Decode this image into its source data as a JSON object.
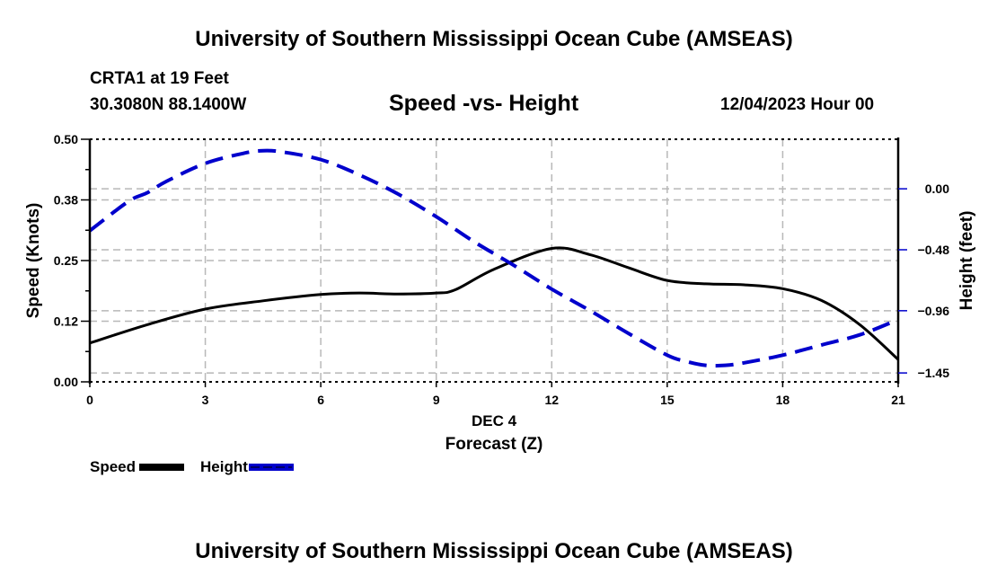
{
  "header": {
    "title": "University of Southern Mississippi Ocean Cube (AMSEAS)",
    "station": "CRTA1 at 19 Feet",
    "coordinates": "30.3080N  88.1400W",
    "chart_title": "Speed -vs- Height",
    "datetime": "12/04/2023 Hour 00"
  },
  "footer": {
    "title": "University of Southern Mississippi Ocean Cube (AMSEAS)"
  },
  "legend": {
    "items": [
      {
        "label": "Speed",
        "color": "#000000",
        "style": "solid"
      },
      {
        "label": "Height",
        "color": "#0000cc",
        "style": "dashed"
      }
    ]
  },
  "chart_data": {
    "type": "line",
    "title": "Speed -vs- Height",
    "xlabel": "Forecast (Z)",
    "xsublabel": "DEC 4",
    "ylabel": "Speed (Knots)",
    "y2label": "Height (feet)",
    "xlim": [
      0,
      21
    ],
    "ylim": [
      0,
      0.5
    ],
    "y2lim": [
      -1.52,
      0.39
    ],
    "xticks": [
      0,
      3,
      6,
      9,
      12,
      15,
      18,
      21
    ],
    "xtick_labels": [
      "0",
      "3",
      "6",
      "9",
      "12",
      "15",
      "18",
      "21"
    ],
    "yticks": [
      0.0,
      0.125,
      0.25,
      0.375,
      0.5
    ],
    "ytick_labels": [
      "0.00",
      "0.12",
      "0.25",
      "0.38",
      "0.50"
    ],
    "y2ticks": [
      0.0,
      -0.48,
      -0.96,
      -1.45
    ],
    "y2tick_labels": [
      "0.00",
      "−0.48",
      "−0.96",
      "−1.45"
    ],
    "grid": true,
    "legend_position": "bottom-left",
    "series": [
      {
        "name": "Speed",
        "axis": "left",
        "color": "#000000",
        "style": "solid",
        "x": [
          0,
          1.5,
          3,
          4.5,
          6,
          7,
          8,
          9,
          9.5,
          10.5,
          12,
          13,
          14,
          15,
          16,
          17,
          18,
          19,
          20,
          21
        ],
        "values": [
          0.08,
          0.118,
          0.15,
          0.167,
          0.18,
          0.183,
          0.181,
          0.183,
          0.19,
          0.232,
          0.275,
          0.262,
          0.235,
          0.209,
          0.202,
          0.2,
          0.192,
          0.168,
          0.118,
          0.046
        ]
      },
      {
        "name": "Height",
        "axis": "right",
        "color": "#0000cc",
        "style": "dashed",
        "x": [
          0,
          1,
          1.5,
          2,
          3,
          4,
          4.5,
          5,
          6,
          7,
          8,
          9,
          10,
          11,
          12,
          13,
          14,
          15,
          15.5,
          16,
          16.5,
          17,
          18,
          19,
          20,
          21
        ],
        "values": [
          -0.33,
          -0.1,
          -0.03,
          0.06,
          0.2,
          0.28,
          0.3,
          0.29,
          0.23,
          0.11,
          -0.04,
          -0.22,
          -0.42,
          -0.6,
          -0.79,
          -0.96,
          -1.14,
          -1.31,
          -1.36,
          -1.39,
          -1.39,
          -1.37,
          -1.31,
          -1.23,
          -1.15,
          -1.03
        ]
      }
    ]
  }
}
